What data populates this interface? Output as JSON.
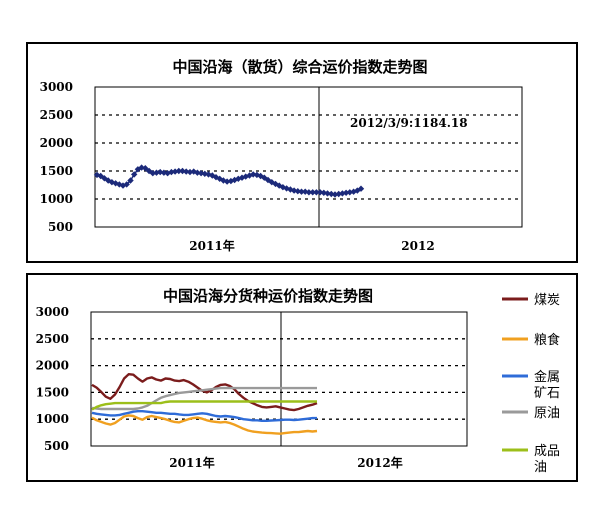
{
  "chart_data": [
    {
      "type": "line",
      "title": "中国沿海（散货）综合运价指数走势图",
      "ylim": [
        500,
        3000
      ],
      "y_ticks": [
        "3000",
        "2500",
        "2000",
        "1500",
        "1000",
        "500"
      ],
      "x_tick_labels": [
        "2011年",
        "2012"
      ],
      "annotation": "2012/3/9:1184.18",
      "grid": "horizontal dashed",
      "series": [
        {
          "color": "#1c2a7a",
          "values": [
            1430,
            1410,
            1370,
            1330,
            1300,
            1280,
            1260,
            1240,
            1260,
            1330,
            1440,
            1530,
            1560,
            1550,
            1500,
            1460,
            1470,
            1480,
            1470,
            1460,
            1480,
            1490,
            1500,
            1500,
            1490,
            1480,
            1490,
            1470,
            1460,
            1450,
            1440,
            1420,
            1390,
            1360,
            1330,
            1310,
            1320,
            1340,
            1360,
            1380,
            1400,
            1420,
            1440,
            1430,
            1410,
            1380,
            1340,
            1300,
            1270,
            1240,
            1210,
            1190,
            1170,
            1150,
            1140,
            1130,
            1130,
            1120,
            1120,
            1120,
            1120,
            1110,
            1100,
            1090,
            1080,
            1090,
            1100,
            1110,
            1120,
            1130,
            1150,
            1184.18
          ]
        }
      ]
    },
    {
      "type": "line",
      "title": "中国沿海分货种运价指数走势图",
      "ylim": [
        500,
        3000
      ],
      "y_ticks": [
        "3000",
        "2500",
        "2000",
        "1500",
        "1000",
        "500"
      ],
      "x_tick_labels": [
        "2011年",
        "2012年"
      ],
      "grid": "horizontal dashed",
      "legend_position": "right",
      "series": [
        {
          "name": "煤炭",
          "color": "#7b1c1c",
          "values": [
            1640,
            1590,
            1510,
            1420,
            1380,
            1460,
            1600,
            1760,
            1840,
            1830,
            1760,
            1700,
            1760,
            1780,
            1740,
            1720,
            1760,
            1750,
            1720,
            1710,
            1730,
            1700,
            1650,
            1590,
            1530,
            1500,
            1540,
            1600,
            1640,
            1650,
            1620,
            1560,
            1470,
            1400,
            1340,
            1300,
            1260,
            1230,
            1220,
            1230,
            1240,
            1220,
            1200,
            1180,
            1170,
            1190,
            1220,
            1250,
            1270,
            1300
          ]
        },
        {
          "name": "粮食",
          "color": "#f0a020",
          "values": [
            1030,
            980,
            950,
            920,
            900,
            930,
            990,
            1050,
            1070,
            1060,
            1020,
            990,
            1040,
            1060,
            1040,
            1020,
            1000,
            970,
            950,
            940,
            970,
            1000,
            1020,
            1030,
            1010,
            980,
            960,
            950,
            940,
            950,
            930,
            900,
            860,
            820,
            790,
            770,
            760,
            750,
            745,
            740,
            735,
            730,
            740,
            750,
            760,
            760,
            770,
            780,
            770,
            780
          ]
        },
        {
          "name": "金属矿石",
          "color": "#2f6cd8",
          "values": [
            1120,
            1100,
            1090,
            1080,
            1070,
            1070,
            1080,
            1100,
            1120,
            1140,
            1150,
            1150,
            1140,
            1130,
            1120,
            1120,
            1110,
            1100,
            1100,
            1090,
            1080,
            1080,
            1090,
            1100,
            1110,
            1100,
            1080,
            1060,
            1050,
            1060,
            1050,
            1040,
            1020,
            1000,
            990,
            980,
            980,
            970,
            970,
            975,
            980,
            985,
            990,
            990,
            985,
            990,
            1000,
            1010,
            1020,
            1020
          ]
        },
        {
          "name": "原油",
          "color": "#9a9a9a",
          "values": [
            1210,
            1200,
            1190,
            1190,
            1190,
            1190,
            1190,
            1190,
            1190,
            1190,
            1200,
            1220,
            1250,
            1300,
            1350,
            1400,
            1430,
            1450,
            1470,
            1490,
            1500,
            1510,
            1520,
            1530,
            1540,
            1550,
            1560,
            1570,
            1580,
            1580,
            1580,
            1580,
            1580,
            1580,
            1580,
            1580,
            1580,
            1580,
            1580,
            1580,
            1580,
            1580,
            1580,
            1580,
            1580,
            1580,
            1580,
            1580,
            1580,
            1580
          ]
        },
        {
          "name": "成品油",
          "color": "#9cbf1a",
          "values": [
            1180,
            1230,
            1260,
            1280,
            1290,
            1300,
            1300,
            1300,
            1300,
            1300,
            1300,
            1300,
            1300,
            1300,
            1300,
            1300,
            1320,
            1330,
            1330,
            1330,
            1330,
            1330,
            1330,
            1330,
            1330,
            1330,
            1330,
            1330,
            1330,
            1330,
            1330,
            1330,
            1330,
            1330,
            1330,
            1330,
            1330,
            1330,
            1330,
            1330,
            1330,
            1330,
            1330,
            1330,
            1330,
            1330,
            1330,
            1330,
            1330,
            1330
          ]
        }
      ]
    }
  ]
}
